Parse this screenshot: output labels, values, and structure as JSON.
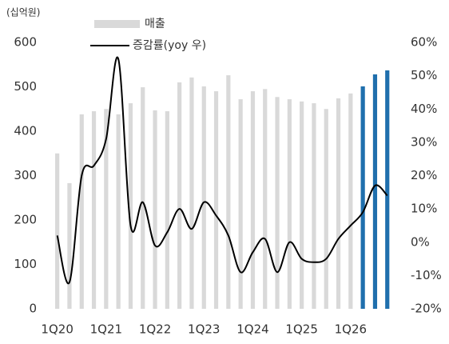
{
  "chart_data": {
    "type": "bar_line",
    "unit_label": "(십억원)",
    "categories": [
      "1Q20",
      null,
      null,
      null,
      "1Q21",
      null,
      null,
      null,
      "1Q22",
      null,
      null,
      null,
      "1Q23",
      null,
      null,
      null,
      "1Q24",
      null,
      null,
      null,
      "1Q25",
      null,
      null,
      null,
      "1Q26",
      null,
      null,
      null
    ],
    "series": [
      {
        "name": "매출",
        "type": "bar",
        "color": "#d9d9d9",
        "colors": [
          "#d9d9d9",
          "#d9d9d9",
          "#d9d9d9",
          "#d9d9d9",
          "#d9d9d9",
          "#d9d9d9",
          "#d9d9d9",
          "#d9d9d9",
          "#d9d9d9",
          "#d9d9d9",
          "#d9d9d9",
          "#d9d9d9",
          "#d9d9d9",
          "#d9d9d9",
          "#d9d9d9",
          "#d9d9d9",
          "#d9d9d9",
          "#d9d9d9",
          "#d9d9d9",
          "#d9d9d9",
          "#d9d9d9",
          "#d9d9d9",
          "#d9d9d9",
          "#d9d9d9",
          "#d9d9d9",
          "#1f6fad",
          "#1f6fad",
          "#1f6fad"
        ],
        "values": [
          350,
          283,
          438,
          445,
          450,
          438,
          463,
          499,
          447,
          445,
          510,
          521,
          501,
          490,
          526,
          472,
          490,
          495,
          477,
          472,
          467,
          463,
          450,
          474,
          485,
          501,
          528,
          537
        ]
      },
      {
        "name": "증감률(yoy 우)",
        "type": "line",
        "axis": "y2",
        "color": "#000000",
        "values": [
          2,
          -12,
          20,
          23,
          31,
          55,
          5,
          12,
          -1,
          3,
          10,
          4,
          12,
          8,
          2,
          -9,
          -3,
          1,
          -9,
          0,
          -5,
          -6,
          -5,
          1,
          5,
          9,
          17,
          14
        ]
      }
    ],
    "ylim": [
      0,
      600
    ],
    "yticks": [
      0,
      100,
      200,
      300,
      400,
      500,
      600
    ],
    "y2lim": [
      -20,
      60
    ],
    "y2ticks": [
      {
        "value": -20,
        "label": "-20%"
      },
      {
        "value": -10,
        "label": "-10%"
      },
      {
        "value": 0,
        "label": "0%"
      },
      {
        "value": 10,
        "label": "10%"
      },
      {
        "value": 20,
        "label": "20%"
      },
      {
        "value": 30,
        "label": "30%"
      },
      {
        "value": 40,
        "label": "40%"
      },
      {
        "value": 50,
        "label": "50%"
      },
      {
        "value": 60,
        "label": "60%"
      }
    ],
    "grid": false
  }
}
